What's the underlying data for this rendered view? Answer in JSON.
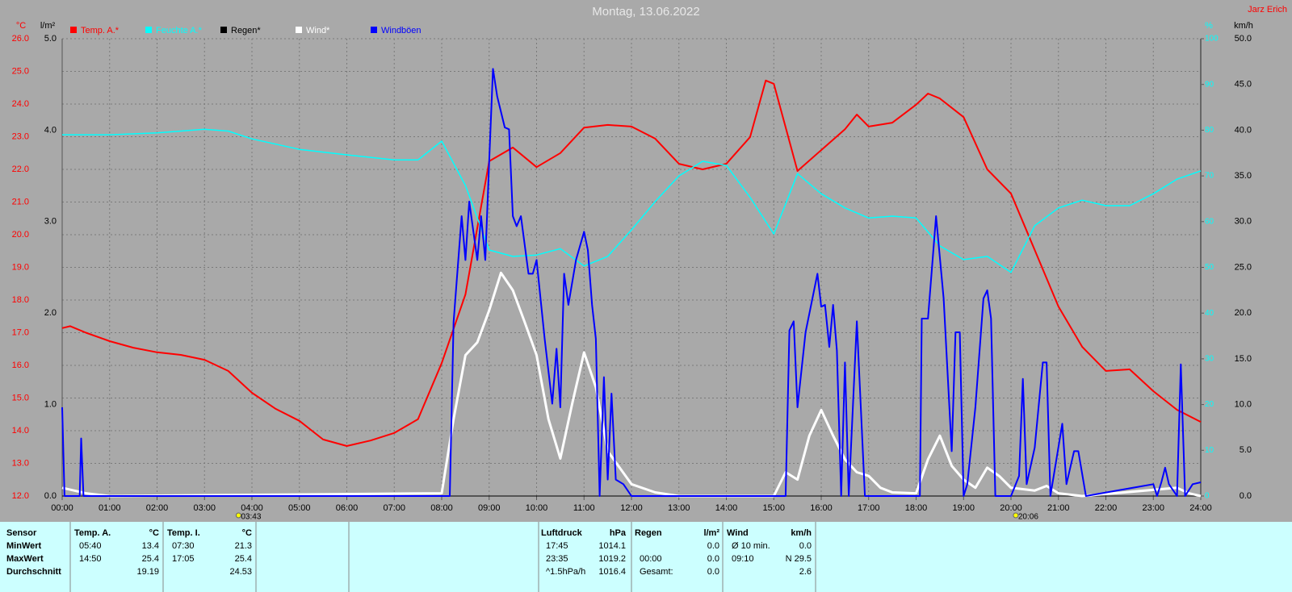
{
  "chart_data": {
    "type": "line",
    "title": "Montag, 13.06.2022",
    "author": "Jarz Erich",
    "y_label": "°C",
    "y3_label": "l/m²",
    "y4_label": "%",
    "y2_label": "km/h",
    "xlim": [
      0,
      24
    ],
    "xticks": [
      {
        "value": 0,
        "label": "00:00"
      },
      {
        "value": 1,
        "label": "01:00"
      },
      {
        "value": 2,
        "label": "02:00"
      },
      {
        "value": 3,
        "label": "03:00"
      },
      {
        "value": 4,
        "label": "04:00"
      },
      {
        "value": 5,
        "label": "05:00"
      },
      {
        "value": 6,
        "label": "06:00"
      },
      {
        "value": 7,
        "label": "07:00"
      },
      {
        "value": 8,
        "label": "08:00"
      },
      {
        "value": 9,
        "label": "09:00"
      },
      {
        "value": 10,
        "label": "10:00"
      },
      {
        "value": 11,
        "label": "11:00"
      },
      {
        "value": 12,
        "label": "12:00"
      },
      {
        "value": 13,
        "label": "13:00"
      },
      {
        "value": 14,
        "label": "14:00"
      },
      {
        "value": 15,
        "label": "15:00"
      },
      {
        "value": 16,
        "label": "16:00"
      },
      {
        "value": 17,
        "label": "17:00"
      },
      {
        "value": 18,
        "label": "18:00"
      },
      {
        "value": 19,
        "label": "19:00"
      },
      {
        "value": 20,
        "label": "20:00"
      },
      {
        "value": 21,
        "label": "21:00"
      },
      {
        "value": 22,
        "label": "22:00"
      },
      {
        "value": 23,
        "label": "23:00"
      },
      {
        "value": 24,
        "label": "24:00"
      }
    ],
    "ylim": [
      12,
      26
    ],
    "yticks": [
      {
        "value": 12,
        "label": "12.0"
      },
      {
        "value": 13,
        "label": "13.0"
      },
      {
        "value": 14,
        "label": "14.0"
      },
      {
        "value": 15,
        "label": "15.0"
      },
      {
        "value": 16,
        "label": "16.0"
      },
      {
        "value": 17,
        "label": "17.0"
      },
      {
        "value": 18,
        "label": "18.0"
      },
      {
        "value": 19,
        "label": "19.0"
      },
      {
        "value": 20,
        "label": "20.0"
      },
      {
        "value": 21,
        "label": "21.0"
      },
      {
        "value": 22,
        "label": "22.0"
      },
      {
        "value": 23,
        "label": "23.0"
      },
      {
        "value": 24,
        "label": "24.0"
      },
      {
        "value": 25,
        "label": "25.0"
      },
      {
        "value": 26,
        "label": "26.0"
      }
    ],
    "y3lim": [
      0,
      5
    ],
    "y3ticks": [
      {
        "value": 0,
        "label": "0.0"
      },
      {
        "value": 1,
        "label": "1.0"
      },
      {
        "value": 2,
        "label": "2.0"
      },
      {
        "value": 3,
        "label": "3.0"
      },
      {
        "value": 4,
        "label": "4.0"
      },
      {
        "value": 5,
        "label": "5.0"
      }
    ],
    "y4lim": [
      0,
      100
    ],
    "y4ticks": [
      0,
      10,
      20,
      30,
      40,
      50,
      60,
      70,
      80,
      90,
      100
    ],
    "y2lim": [
      0,
      50
    ],
    "y2ticks": [
      {
        "value": 0,
        "label": "0.0"
      },
      {
        "value": 5,
        "label": "5.0"
      },
      {
        "value": 10,
        "label": "10.0"
      },
      {
        "value": 15,
        "label": "15.0"
      },
      {
        "value": 20,
        "label": "20.0"
      },
      {
        "value": 25,
        "label": "25.0"
      },
      {
        "value": 30,
        "label": "30.0"
      },
      {
        "value": 35,
        "label": "35.0"
      },
      {
        "value": 40,
        "label": "40.0"
      },
      {
        "value": 45,
        "label": "45.0"
      },
      {
        "value": 50,
        "label": "50.0"
      }
    ],
    "grid": true,
    "legend": "top",
    "series": [
      {
        "name": "Temp. A.*",
        "color": "#ff0000",
        "axis": "y",
        "x": [
          0,
          0.17,
          0.5,
          1,
          1.5,
          2,
          2.5,
          3,
          3.5,
          4,
          4.5,
          5,
          5.5,
          6,
          6.5,
          7,
          7.5,
          8,
          8.5,
          9,
          9.5,
          10,
          10.5,
          11,
          11.5,
          12,
          12.5,
          13,
          13.5,
          14,
          14.5,
          14.83,
          15,
          15.5,
          16,
          16.5,
          16.75,
          17,
          17.5,
          18,
          18.25,
          18.5,
          19,
          19.5,
          20,
          20.5,
          21,
          21.5,
          22,
          22.5,
          23,
          23.5,
          24
        ],
        "values": [
          17.14,
          17.2,
          17.0,
          16.74,
          16.54,
          16.4,
          16.32,
          16.17,
          15.83,
          15.16,
          14.67,
          14.3,
          13.73,
          13.53,
          13.7,
          13.93,
          14.35,
          16.07,
          18.17,
          22.25,
          22.67,
          22.07,
          22.5,
          23.28,
          23.36,
          23.31,
          22.94,
          22.17,
          22.0,
          22.17,
          22.99,
          24.72,
          24.62,
          21.95,
          22.59,
          23.23,
          23.68,
          23.31,
          23.43,
          23.98,
          24.32,
          24.17,
          23.6,
          22.0,
          21.26,
          19.53,
          17.8,
          16.57,
          15.83,
          15.88,
          15.21,
          14.64,
          14.27
        ]
      },
      {
        "name": "Feuchte A.*",
        "color": "#00ffff",
        "axis": "y4",
        "x": [
          0,
          1,
          2,
          3,
          3.5,
          4,
          5,
          6,
          7,
          7.5,
          8,
          8.5,
          9,
          9.5,
          10,
          10.5,
          11,
          11.5,
          12,
          12.5,
          13,
          13.5,
          14,
          14.5,
          15,
          15.5,
          16,
          16.5,
          17,
          17.5,
          18,
          18.5,
          19,
          19.5,
          20,
          20.5,
          21,
          21.5,
          22,
          22.5,
          23,
          23.5,
          24
        ],
        "values": [
          79.0,
          79.0,
          79.4,
          80.2,
          79.8,
          78.1,
          75.8,
          74.6,
          73.5,
          73.5,
          77.6,
          67.9,
          53.8,
          52.4,
          52.7,
          54.1,
          50.3,
          52.4,
          58.2,
          64.4,
          70.0,
          73.2,
          72.3,
          65.3,
          57.3,
          70.5,
          66.1,
          63.0,
          60.8,
          61.2,
          60.8,
          54.7,
          51.7,
          52.4,
          48.9,
          59.1,
          63.0,
          64.7,
          63.5,
          63.5,
          66.1,
          69.3,
          71.1
        ]
      },
      {
        "name": "Regen*",
        "color": "#000000",
        "axis": "y3",
        "x": [
          0,
          24
        ],
        "values": [
          0,
          0
        ]
      },
      {
        "name": "Wind*",
        "color": "#ffffff",
        "axis": "y2",
        "x": [
          0,
          0.5,
          1,
          8,
          8.25,
          8.5,
          8.75,
          9,
          9.25,
          9.5,
          9.75,
          10,
          10.25,
          10.5,
          10.75,
          11,
          11.25,
          11.5,
          11.75,
          12,
          12.5,
          13,
          15,
          15.25,
          15.5,
          15.75,
          16,
          16.25,
          16.5,
          16.75,
          17,
          17.25,
          17.5,
          18,
          18.25,
          18.5,
          18.75,
          19,
          19.25,
          19.5,
          19.75,
          20,
          20.5,
          20.75,
          21,
          21.5,
          23.5,
          23.75,
          24
        ],
        "values": [
          0.9,
          0.3,
          0,
          0.3,
          8.4,
          15.4,
          16.8,
          20.3,
          24.4,
          22.5,
          19.0,
          15.4,
          8.4,
          4.1,
          10.1,
          15.7,
          11.9,
          4.9,
          3.1,
          1.3,
          0.4,
          0,
          0,
          2.6,
          1.8,
          6.6,
          9.4,
          6.6,
          4.0,
          2.6,
          2.2,
          0.9,
          0.4,
          0.3,
          4.0,
          6.6,
          3.3,
          1.8,
          0.9,
          3.1,
          2.2,
          0.9,
          0.6,
          1.1,
          0.3,
          0,
          0.9,
          0.3,
          0
        ]
      },
      {
        "name": "Windböen",
        "color": "#0000ff",
        "axis": "y2",
        "x": [
          0,
          0.05,
          0.37,
          0.4,
          0.45,
          8.17,
          8.25,
          8.42,
          8.5,
          8.58,
          8.75,
          8.83,
          8.92,
          9,
          9.08,
          9.17,
          9.33,
          9.42,
          9.5,
          9.58,
          9.67,
          9.83,
          9.92,
          10,
          10.17,
          10.33,
          10.42,
          10.5,
          10.58,
          10.67,
          10.83,
          11,
          11.08,
          11.17,
          11.25,
          11.33,
          11.42,
          11.5,
          11.58,
          11.67,
          11.83,
          12,
          15.25,
          15.33,
          15.42,
          15.5,
          15.67,
          15.92,
          16,
          16.08,
          16.17,
          16.25,
          16.33,
          16.42,
          16.5,
          16.58,
          16.75,
          16.92,
          18.08,
          18.12,
          18.25,
          18.42,
          18.58,
          18.75,
          18.83,
          18.92,
          19,
          19.08,
          19.25,
          19.42,
          19.5,
          19.58,
          19.67,
          20,
          20.17,
          20.25,
          20.33,
          20.5,
          20.67,
          20.75,
          20.83,
          21.08,
          21.17,
          21.33,
          21.42,
          21.58,
          23,
          23.08,
          23.17,
          23.25,
          23.33,
          23.5,
          23.58,
          23.67,
          23.83,
          24
        ],
        "values": [
          9.7,
          0,
          0,
          6.3,
          0,
          0,
          19.0,
          30.6,
          25.8,
          32.2,
          25.8,
          30.6,
          25.8,
          36.6,
          46.7,
          43.7,
          40.3,
          40.1,
          30.6,
          29.5,
          30.6,
          24.3,
          24.3,
          25.8,
          17.2,
          10.1,
          16.1,
          9.7,
          24.3,
          20.9,
          25.8,
          28.9,
          26.9,
          20.9,
          17.2,
          0,
          13.0,
          1.8,
          11.2,
          1.8,
          1.3,
          0,
          0,
          18.1,
          19.1,
          9.7,
          17.9,
          24.3,
          20.7,
          20.9,
          16.3,
          20.9,
          15.9,
          0,
          14.6,
          0,
          19.1,
          0,
          0,
          19.4,
          19.4,
          30.6,
          21.6,
          4.9,
          17.9,
          17.9,
          0,
          1.3,
          9.7,
          21.6,
          22.5,
          19.4,
          0,
          0,
          2.2,
          12.8,
          1.3,
          5.3,
          14.6,
          14.6,
          0,
          7.9,
          1.3,
          4.9,
          4.9,
          0,
          1.3,
          0,
          1.5,
          3.1,
          1.3,
          0,
          14.4,
          0,
          1.3,
          1.5
        ]
      }
    ],
    "annotations": [
      {
        "x": 3.717,
        "label": "03:43"
      },
      {
        "x": 20.1,
        "label": "20:06"
      }
    ]
  },
  "table": {
    "first_column": {
      "header": "Sensor",
      "rows": [
        "MinWert",
        "MaxWert",
        "Durchschnitt"
      ]
    },
    "groups": [
      {
        "name": "Temp. A.",
        "unit": "°C",
        "rows": [
          [
            "05:40",
            "13.4"
          ],
          [
            "14:50",
            "25.4"
          ],
          [
            null,
            "19.19"
          ]
        ]
      },
      {
        "name": "Temp. I.",
        "unit": "°C",
        "rows": [
          [
            "07:30",
            "21.3"
          ],
          [
            "17:05",
            "25.4"
          ],
          [
            null,
            "24.53"
          ]
        ]
      },
      {
        "name": "Luftdruck",
        "unit": "hPa",
        "rows": [
          [
            "17:45",
            "1014.1"
          ],
          [
            "23:35",
            "1019.2"
          ],
          [
            "^1.5hPa/h",
            "1016.4"
          ]
        ]
      },
      {
        "name": "Regen",
        "unit": "l/m²",
        "rows": [
          [
            null,
            "0.0"
          ],
          [
            "00:00",
            "0.0"
          ],
          [
            "Gesamt:",
            "0.0"
          ]
        ]
      },
      {
        "name": "Wind",
        "unit": "km/h",
        "rows": [
          [
            "Ø 10 min.",
            "0.0"
          ],
          [
            "09:10",
            "N 29.5"
          ],
          [
            null,
            "2.6"
          ]
        ]
      }
    ]
  }
}
